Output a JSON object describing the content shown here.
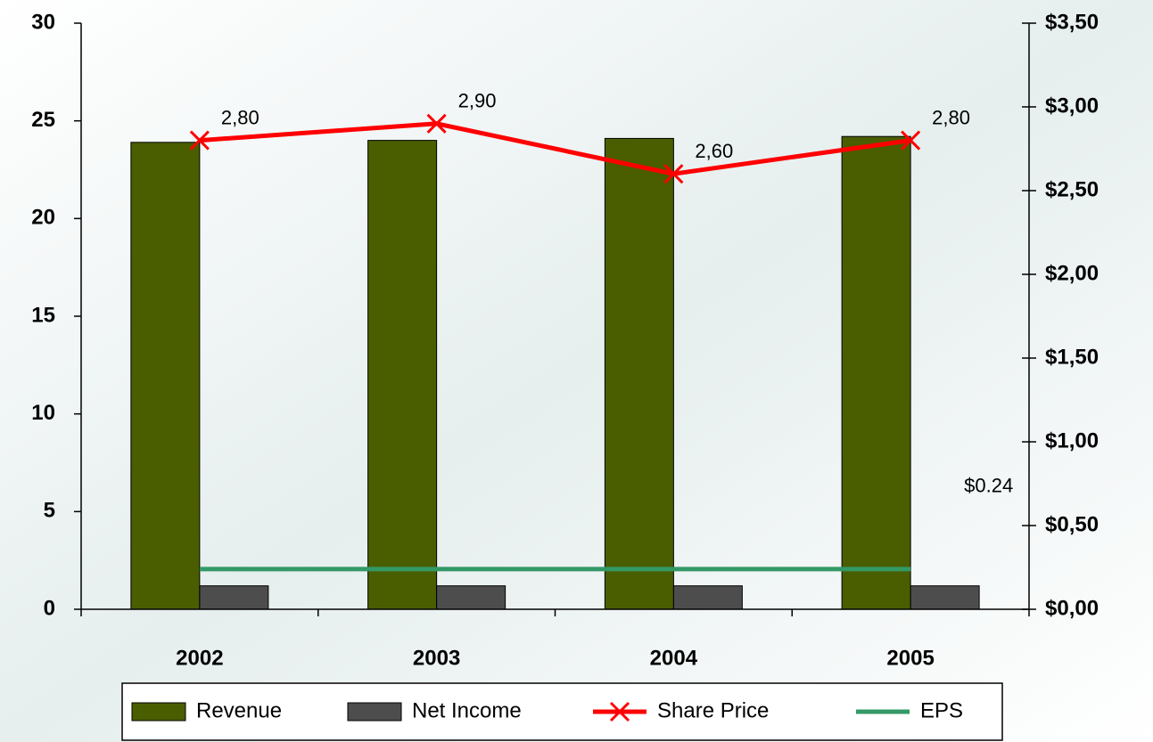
{
  "chart_data": {
    "type": "bar_line",
    "categories": [
      "2002",
      "2003",
      "2004",
      "2005"
    ],
    "series": [
      {
        "name": "Revenue",
        "type": "bar",
        "color": "#4a5e00",
        "values": [
          23.9,
          24.0,
          24.1,
          24.2
        ]
      },
      {
        "name": "Net Income",
        "type": "bar",
        "color": "#4d4d4d",
        "values": [
          1.2,
          1.2,
          1.2,
          1.2
        ]
      },
      {
        "name": "Share Price",
        "type": "line",
        "axis": "y2",
        "color": "#ff0000",
        "marker": "x",
        "values": [
          2.8,
          2.9,
          2.6,
          2.8
        ],
        "value_labels": [
          "2,80",
          "2,90",
          "2,60",
          "2,80"
        ]
      },
      {
        "name": "EPS",
        "type": "line",
        "axis": "y2",
        "color": "#339966",
        "values": [
          0.24,
          0.24,
          0.24,
          0.24
        ],
        "value_labels": [
          null,
          null,
          null,
          "$0.24"
        ]
      }
    ],
    "ylim": [
      0,
      30
    ],
    "yticks": [
      0,
      5,
      10,
      15,
      20,
      25,
      30
    ],
    "y2lim": [
      0,
      3.5
    ],
    "y2ticks": [
      {
        "value": 0,
        "label": "$0,00"
      },
      {
        "value": 0.5,
        "label": "$0,50"
      },
      {
        "value": 1,
        "label": "$1,00"
      },
      {
        "value": 1.5,
        "label": "$1,50"
      },
      {
        "value": 2,
        "label": "$2,00"
      },
      {
        "value": 2.5,
        "label": "$2,50"
      },
      {
        "value": 3,
        "label": "$3,00"
      },
      {
        "value": 3.5,
        "label": "$3,50"
      }
    ],
    "legend": "bottom"
  }
}
